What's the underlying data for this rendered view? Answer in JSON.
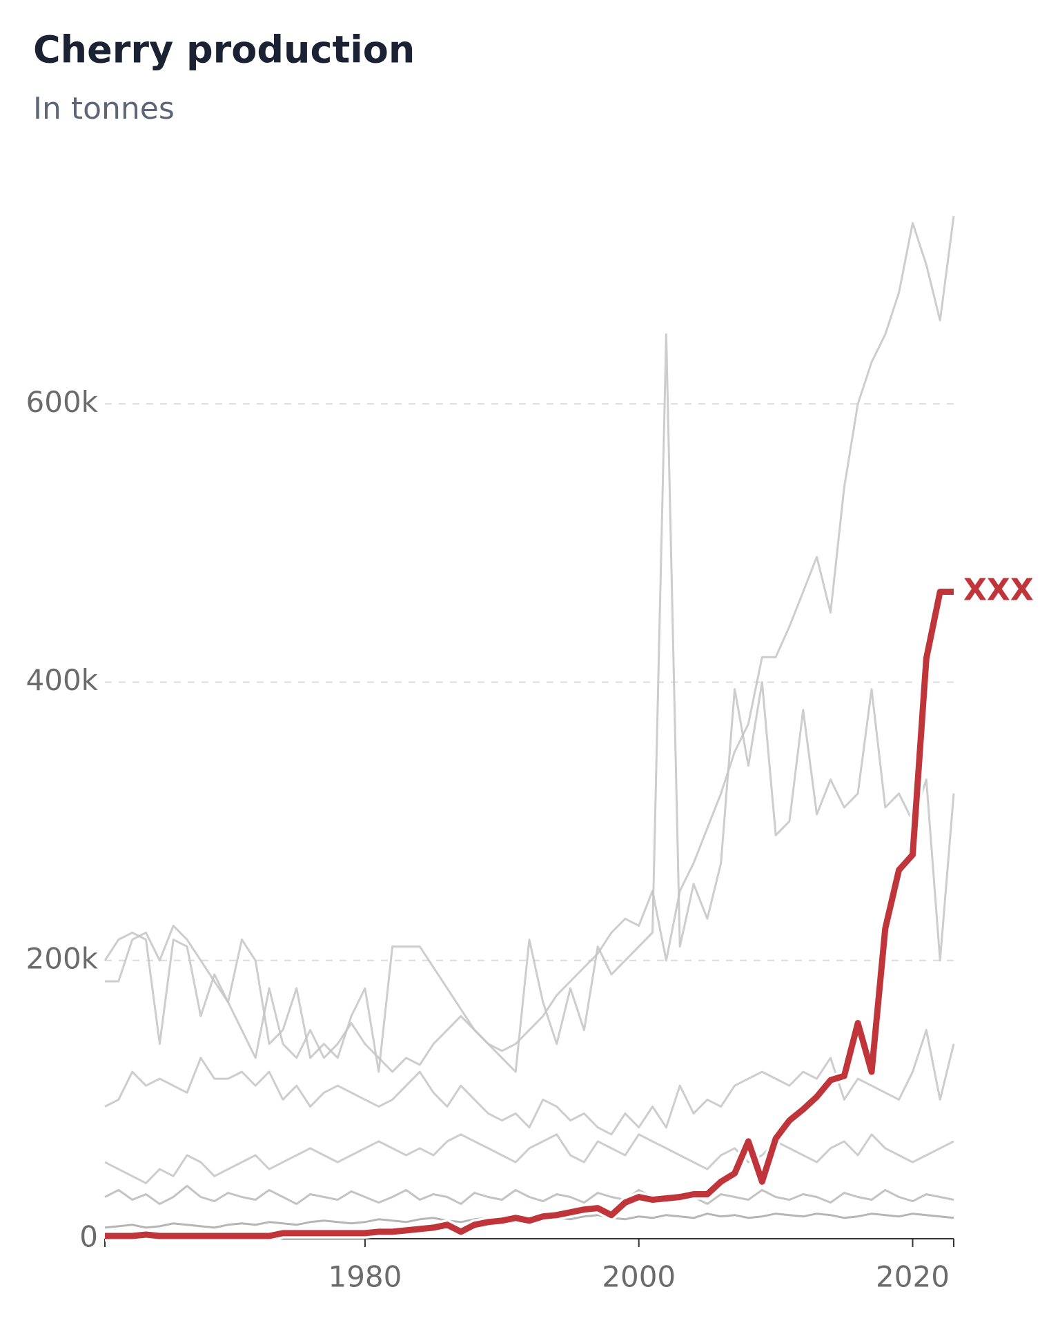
{
  "chart_data": {
    "type": "line",
    "title": "Cherry production",
    "subtitle": "In tonnes",
    "x": [
      1961,
      1962,
      1963,
      1964,
      1965,
      1966,
      1967,
      1968,
      1969,
      1970,
      1971,
      1972,
      1973,
      1974,
      1975,
      1976,
      1977,
      1978,
      1979,
      1980,
      1981,
      1982,
      1983,
      1984,
      1985,
      1986,
      1987,
      1988,
      1989,
      1990,
      1991,
      1992,
      1993,
      1994,
      1995,
      1996,
      1997,
      1998,
      1999,
      2000,
      2001,
      2002,
      2003,
      2004,
      2005,
      2006,
      2007,
      2008,
      2009,
      2010,
      2011,
      2012,
      2013,
      2014,
      2015,
      2016,
      2017,
      2018,
      2019,
      2020,
      2021,
      2022,
      2023
    ],
    "xlim": [
      1961,
      2023
    ],
    "xticks": [
      1980,
      2000,
      2020
    ],
    "ylim": [
      0,
      740000
    ],
    "yticks": [
      {
        "value": 0,
        "label": "0"
      },
      {
        "value": 200000,
        "label": "200k"
      },
      {
        "value": 400000,
        "label": "400k"
      },
      {
        "value": 600000,
        "label": "600k"
      }
    ],
    "grid": true,
    "series": [
      {
        "color": "#c4c4c4",
        "values": [
          185000,
          185000,
          215000,
          220000,
          200000,
          225000,
          215000,
          200000,
          185000,
          170000,
          150000,
          130000,
          180000,
          140000,
          130000,
          150000,
          130000,
          140000,
          155000,
          140000,
          130000,
          120000,
          130000,
          125000,
          140000,
          150000,
          160000,
          150000,
          140000,
          135000,
          140000,
          150000,
          160000,
          175000,
          185000,
          195000,
          205000,
          220000,
          230000,
          225000,
          250000,
          200000,
          250000,
          270000,
          295000,
          320000,
          350000,
          370000,
          418000,
          418000,
          440000,
          465000,
          490000,
          450000,
          540000,
          600000,
          630000,
          650000,
          680000,
          730000,
          700000,
          660000,
          735000
        ]
      },
      {
        "color": "#c4c4c4",
        "values": [
          200000,
          215000,
          220000,
          215000,
          140000,
          215000,
          210000,
          160000,
          190000,
          170000,
          215000,
          200000,
          140000,
          150000,
          180000,
          130000,
          140000,
          130000,
          160000,
          180000,
          120000,
          210000,
          210000,
          210000,
          195000,
          180000,
          165000,
          150000,
          140000,
          130000,
          120000,
          215000,
          170000,
          140000,
          180000,
          150000,
          210000,
          190000,
          200000,
          210000,
          220000,
          650000,
          210000,
          255000,
          230000,
          270000,
          395000,
          340000,
          400000,
          290000,
          300000,
          380000,
          305000,
          330000,
          310000,
          320000,
          395000,
          310000,
          320000,
          300000,
          330000,
          200000,
          320000
        ]
      },
      {
        "color": "#c4c4c4",
        "values": [
          95000,
          100000,
          120000,
          110000,
          115000,
          110000,
          105000,
          130000,
          115000,
          115000,
          120000,
          110000,
          120000,
          100000,
          110000,
          95000,
          105000,
          110000,
          105000,
          100000,
          95000,
          100000,
          110000,
          120000,
          105000,
          95000,
          110000,
          100000,
          90000,
          85000,
          90000,
          80000,
          100000,
          95000,
          85000,
          90000,
          80000,
          75000,
          90000,
          80000,
          95000,
          80000,
          110000,
          90000,
          100000,
          95000,
          110000,
          115000,
          120000,
          115000,
          110000,
          120000,
          115000,
          130000,
          100000,
          115000,
          110000,
          105000,
          100000,
          120000,
          150000,
          100000,
          140000
        ]
      },
      {
        "color": "#c4c4c4",
        "values": [
          55000,
          50000,
          45000,
          40000,
          50000,
          45000,
          60000,
          55000,
          45000,
          50000,
          55000,
          60000,
          50000,
          55000,
          60000,
          65000,
          60000,
          55000,
          60000,
          65000,
          70000,
          65000,
          60000,
          65000,
          60000,
          70000,
          75000,
          70000,
          65000,
          60000,
          55000,
          65000,
          70000,
          75000,
          60000,
          55000,
          70000,
          65000,
          60000,
          75000,
          70000,
          65000,
          60000,
          55000,
          50000,
          60000,
          65000,
          55000,
          60000,
          70000,
          65000,
          60000,
          55000,
          65000,
          70000,
          60000,
          75000,
          65000,
          60000,
          55000,
          60000,
          65000,
          70000
        ]
      },
      {
        "color": "#b8b8b8",
        "values": [
          30000,
          35000,
          28000,
          32000,
          25000,
          30000,
          38000,
          30000,
          27000,
          33000,
          30000,
          28000,
          35000,
          30000,
          25000,
          32000,
          30000,
          28000,
          34000,
          30000,
          26000,
          30000,
          35000,
          28000,
          32000,
          30000,
          25000,
          33000,
          30000,
          28000,
          35000,
          30000,
          27000,
          32000,
          30000,
          26000,
          33000,
          30000,
          28000,
          35000,
          30000,
          27000,
          33000,
          30000,
          25000,
          32000,
          30000,
          28000,
          35000,
          30000,
          28000,
          32000,
          30000,
          26000,
          33000,
          30000,
          28000,
          35000,
          30000,
          27000,
          32000,
          30000,
          28000
        ]
      },
      {
        "color": "#a8a8a8",
        "values": [
          8000,
          9000,
          10000,
          8000,
          9000,
          11000,
          10000,
          9000,
          8000,
          10000,
          11000,
          10000,
          12000,
          11000,
          10000,
          12000,
          13000,
          12000,
          11000,
          12000,
          14000,
          13000,
          12000,
          14000,
          15000,
          13000,
          12000,
          14000,
          15000,
          16000,
          15000,
          14000,
          16000,
          15000,
          14000,
          16000,
          17000,
          15000,
          14000,
          16000,
          15000,
          17000,
          16000,
          15000,
          18000,
          16000,
          17000,
          15000,
          16000,
          18000,
          17000,
          16000,
          18000,
          17000,
          15000,
          16000,
          18000,
          17000,
          16000,
          18000,
          17000,
          16000,
          15000
        ]
      },
      {
        "name": "XXX",
        "color": "#c0353a",
        "values": [
          2000,
          2000,
          2000,
          3000,
          2000,
          2000,
          2000,
          2000,
          2000,
          2000,
          2000,
          2000,
          2000,
          4000,
          4000,
          4000,
          4000,
          4000,
          4000,
          4000,
          5000,
          5000,
          6000,
          7000,
          8000,
          10000,
          5000,
          10000,
          12000,
          13000,
          15000,
          13000,
          16000,
          17000,
          19000,
          21000,
          22000,
          17000,
          26000,
          30000,
          28000,
          29000,
          30000,
          32000,
          32000,
          41000,
          47000,
          70000,
          41000,
          72000,
          85000,
          93000,
          102000,
          114000,
          117000,
          155000,
          120000,
          223000,
          265000,
          276000,
          417000,
          465000,
          465000
        ]
      }
    ]
  }
}
